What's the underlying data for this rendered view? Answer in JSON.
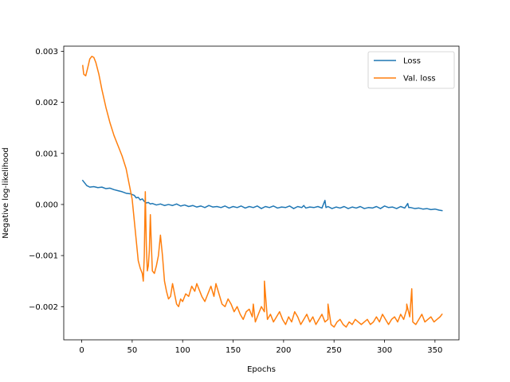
{
  "chart_data": {
    "type": "line",
    "title": "",
    "xlabel": "Epochs",
    "ylabel": "Negative log-likelihood",
    "xlim": [
      -17.8,
      373.8
    ],
    "ylim": [
      -0.00265,
      0.0031
    ],
    "xticks": [
      0,
      50,
      100,
      150,
      200,
      250,
      300,
      350
    ],
    "xtick_labels": [
      "0",
      "50",
      "100",
      "150",
      "200",
      "250",
      "300",
      "350"
    ],
    "yticks": [
      -0.002,
      -0.001,
      0.0,
      0.001,
      0.002,
      0.003
    ],
    "ytick_labels": [
      "−0.002",
      "−0.001",
      "0.000",
      "0.001",
      "0.002",
      "0.003"
    ],
    "grid": false,
    "legend": {
      "position": "top-right"
    },
    "series": [
      {
        "name": "Loss",
        "color": "#1f77b4",
        "x": [
          1,
          5,
          8,
          12,
          16,
          20,
          24,
          28,
          32,
          36,
          40,
          44,
          48,
          52,
          54,
          56,
          58,
          60,
          62,
          64,
          66,
          68,
          70,
          74,
          78,
          82,
          86,
          90,
          94,
          98,
          102,
          106,
          110,
          114,
          118,
          122,
          126,
          130,
          134,
          138,
          142,
          146,
          150,
          154,
          158,
          162,
          166,
          170,
          174,
          178,
          182,
          186,
          190,
          194,
          198,
          202,
          206,
          210,
          214,
          218,
          220,
          222,
          226,
          230,
          234,
          238,
          241,
          242,
          244,
          248,
          252,
          256,
          260,
          264,
          268,
          272,
          276,
          280,
          284,
          288,
          292,
          296,
          300,
          304,
          308,
          312,
          316,
          320,
          323,
          324,
          326,
          330,
          334,
          338,
          342,
          346,
          350,
          354,
          357
        ],
        "y": [
          0.00047,
          0.00037,
          0.00034,
          0.00035,
          0.00033,
          0.00034,
          0.00031,
          0.00032,
          0.00029,
          0.00027,
          0.00025,
          0.00022,
          0.00021,
          0.00018,
          0.00013,
          0.00014,
          9e-05,
          0.00011,
          6e-05,
          3e-05,
          4e-05,
          1e-05,
          2e-05,
          -1e-05,
          1e-05,
          -2e-05,
          0.0,
          -2e-05,
          1e-05,
          -3e-05,
          -1e-05,
          -4e-05,
          -2e-05,
          -5e-05,
          -3e-05,
          -6e-05,
          -2e-05,
          -5e-05,
          -4e-05,
          -6e-05,
          -3e-05,
          -7e-05,
          -4e-05,
          -6e-05,
          -3e-05,
          -7e-05,
          -4e-05,
          -6e-05,
          -3e-05,
          -8e-05,
          -4e-05,
          -6e-05,
          -3e-05,
          -7e-05,
          -5e-05,
          -6e-05,
          -3e-05,
          -8e-05,
          -4e-05,
          -6e-05,
          -2e-05,
          -7e-05,
          -5e-05,
          -6e-05,
          -4e-05,
          -7e-05,
          8e-05,
          -6e-05,
          -4e-05,
          -8e-05,
          -5e-05,
          -7e-05,
          -4e-05,
          -8e-05,
          -5e-05,
          -7e-05,
          -4e-05,
          -8e-05,
          -6e-05,
          -7e-05,
          -4e-05,
          -8e-05,
          -3e-05,
          -6e-05,
          -5e-05,
          -8e-05,
          -4e-05,
          -7e-05,
          2e-05,
          -6e-05,
          -6e-05,
          -8e-05,
          -7e-05,
          -9e-05,
          -8e-05,
          -0.0001,
          -9e-05,
          -0.00011,
          -0.00012
        ]
      },
      {
        "name": "Val. loss",
        "color": "#ff7f0e",
        "x": [
          1,
          2,
          4,
          6,
          8,
          10,
          12,
          14,
          17,
          20,
          24,
          28,
          32,
          36,
          40,
          44,
          47,
          50,
          52,
          54,
          56,
          58,
          60,
          61,
          62,
          63,
          64,
          65,
          66,
          67,
          68,
          69,
          70,
          72,
          74,
          76,
          78,
          80,
          82,
          84,
          86,
          88,
          90,
          92,
          94,
          96,
          98,
          100,
          103,
          106,
          109,
          112,
          114,
          116,
          119,
          122,
          125,
          128,
          131,
          133,
          136,
          139,
          142,
          145,
          148,
          151,
          154,
          157,
          160,
          163,
          166,
          169,
          172,
          175,
          178,
          181,
          184,
          187,
          190,
          193,
          196,
          199,
          202,
          205,
          208,
          211,
          214,
          217,
          220,
          223,
          226,
          229,
          232,
          235,
          238,
          241,
          244,
          247,
          250,
          253,
          256,
          259,
          262,
          265,
          268,
          271,
          274,
          277,
          280,
          283,
          286,
          289,
          292,
          295,
          298,
          301,
          304,
          307,
          310,
          313,
          316,
          319,
          322,
          325,
          328,
          331,
          334,
          337,
          340,
          343,
          346,
          349,
          352,
          355,
          357
        ],
        "y": [
          0.00272,
          0.00255,
          0.00252,
          0.00268,
          0.00285,
          0.0029,
          0.00288,
          0.00278,
          0.00255,
          0.00225,
          0.0019,
          0.0016,
          0.00135,
          0.00115,
          0.00095,
          0.0007,
          0.0004,
          0.0001,
          -0.0003,
          -0.0007,
          -0.0011,
          -0.00125,
          -0.00135,
          -0.0015,
          -0.001,
          0.00025,
          -0.0008,
          -0.0013,
          -0.0012,
          -0.0009,
          -0.0002,
          -0.0008,
          -0.0013,
          -0.00135,
          -0.0012,
          -0.001,
          -0.0006,
          -0.001,
          -0.0015,
          -0.0017,
          -0.00185,
          -0.0018,
          -0.00155,
          -0.00175,
          -0.00195,
          -0.002,
          -0.00185,
          -0.0019,
          -0.00175,
          -0.0018,
          -0.0016,
          -0.0017,
          -0.00155,
          -0.00165,
          -0.0018,
          -0.0019,
          -0.00175,
          -0.0016,
          -0.0018,
          -0.00155,
          -0.00175,
          -0.00195,
          -0.002,
          -0.00185,
          -0.00195,
          -0.0021,
          -0.002,
          -0.00215,
          -0.00225,
          -0.0021,
          -0.00205,
          -0.0022,
          -0.0023,
          -0.00215,
          -0.002,
          -0.0021,
          -0.00225,
          -0.00215,
          -0.0023,
          -0.0022,
          -0.0021,
          -0.00225,
          -0.00235,
          -0.0022,
          -0.0023,
          -0.0021,
          -0.0022,
          -0.00235,
          -0.00225,
          -0.00215,
          -0.0023,
          -0.0022,
          -0.00235,
          -0.00225,
          -0.00215,
          -0.0023,
          -0.00225,
          -0.00235,
          -0.0024,
          -0.0023,
          -0.00225,
          -0.00235,
          -0.0024,
          -0.0023,
          -0.00235,
          -0.00225,
          -0.0023,
          -0.00235,
          -0.0023,
          -0.00225,
          -0.00235,
          -0.0023,
          -0.0022,
          -0.0023,
          -0.00215,
          -0.00225,
          -0.00235,
          -0.00225,
          -0.0022,
          -0.0023,
          -0.00215,
          -0.00225,
          -0.00205,
          -0.0022,
          -0.0023,
          -0.00235,
          -0.00225,
          -0.00215,
          -0.0023,
          -0.00225,
          -0.0022,
          -0.0023,
          -0.00225,
          -0.0022,
          -0.00215
        ]
      }
    ],
    "val_loss_extra_points": {
      "comment_free": true,
      "x": [
        170,
        181,
        244,
        322,
        327
      ],
      "y": [
        -0.00195,
        -0.0015,
        -0.00195,
        -0.00195,
        -0.00165
      ]
    }
  }
}
